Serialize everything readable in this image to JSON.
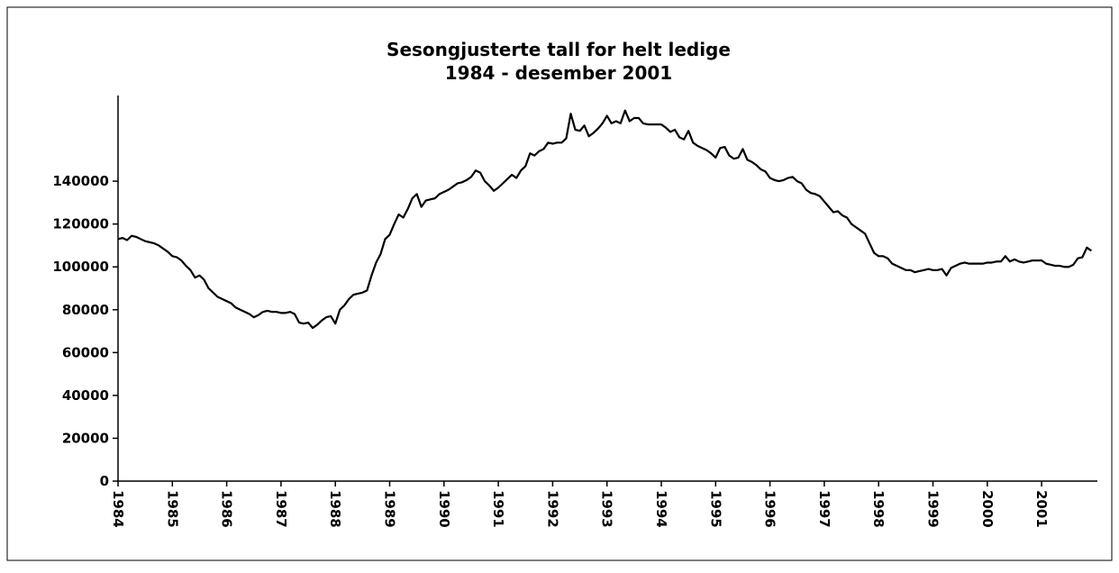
{
  "chart_data": {
    "type": "line",
    "title": "Sesongjusterte tall for helt ledige",
    "subtitle": "1984 - desember 2001",
    "categories": [
      "1984",
      null,
      null,
      null,
      null,
      null,
      null,
      null,
      null,
      null,
      null,
      null,
      "1985",
      null,
      null,
      null,
      null,
      null,
      null,
      null,
      null,
      null,
      null,
      null,
      "1986",
      null,
      null,
      null,
      null,
      null,
      null,
      null,
      null,
      null,
      null,
      null,
      "1987",
      null,
      null,
      null,
      null,
      null,
      null,
      null,
      null,
      null,
      null,
      null,
      "1988",
      null,
      null,
      null,
      null,
      null,
      null,
      null,
      null,
      null,
      null,
      null,
      "1989",
      null,
      null,
      null,
      null,
      null,
      null,
      null,
      null,
      null,
      null,
      null,
      "1990",
      null,
      null,
      null,
      null,
      null,
      null,
      null,
      null,
      null,
      null,
      null,
      "1991",
      null,
      null,
      null,
      null,
      null,
      null,
      null,
      null,
      null,
      null,
      null,
      "1992",
      null,
      null,
      null,
      null,
      null,
      null,
      null,
      null,
      null,
      null,
      null,
      "1993",
      null,
      null,
      null,
      null,
      null,
      null,
      null,
      null,
      null,
      null,
      null,
      "1994",
      null,
      null,
      null,
      null,
      null,
      null,
      null,
      null,
      null,
      null,
      null,
      "1995",
      null,
      null,
      null,
      null,
      null,
      null,
      null,
      null,
      null,
      null,
      null,
      "1996",
      null,
      null,
      null,
      null,
      null,
      null,
      null,
      null,
      null,
      null,
      null,
      "1997",
      null,
      null,
      null,
      null,
      null,
      null,
      null,
      null,
      null,
      null,
      null,
      "1998",
      null,
      null,
      null,
      null,
      null,
      null,
      null,
      null,
      null,
      null,
      null,
      "1999",
      null,
      null,
      null,
      null,
      null,
      null,
      null,
      null,
      null,
      null,
      null,
      "2000",
      null,
      null,
      null,
      null,
      null,
      null,
      null,
      null,
      null,
      null,
      null,
      "2001",
      null,
      null,
      null,
      null,
      null,
      null,
      null,
      null,
      null,
      null,
      null
    ],
    "values": [
      113000,
      113500,
      112500,
      114500,
      114000,
      113000,
      112000,
      111500,
      111000,
      110000,
      108500,
      107000,
      105000,
      104500,
      103000,
      100500,
      98500,
      95000,
      96000,
      94000,
      90000,
      88000,
      86000,
      85000,
      84000,
      83000,
      81000,
      80000,
      79000,
      78000,
      76500,
      77500,
      79000,
      79500,
      79000,
      79000,
      78500,
      78500,
      79000,
      78000,
      74000,
      73500,
      74000,
      71500,
      73000,
      75000,
      76500,
      77000,
      73500,
      80000,
      82000,
      85000,
      87000,
      87500,
      88000,
      89000,
      96000,
      102000,
      106000,
      113000,
      115000,
      120000,
      124500,
      123000,
      127000,
      132000,
      134000,
      128000,
      131000,
      131500,
      132000,
      134000,
      135000,
      136000,
      137500,
      139000,
      139500,
      140500,
      142000,
      145000,
      144000,
      140000,
      138000,
      135500,
      137000,
      139000,
      141000,
      143000,
      141500,
      145000,
      147000,
      153000,
      152000,
      154000,
      155000,
      158000,
      157500,
      158000,
      158000,
      160000,
      171500,
      164000,
      163500,
      166000,
      161000,
      162500,
      164500,
      167000,
      170500,
      167000,
      168000,
      167000,
      173000,
      168000,
      169500,
      169500,
      167000,
      166500,
      166500,
      166500,
      166500,
      165000,
      163000,
      164000,
      160500,
      159500,
      163500,
      158000,
      156500,
      155500,
      154500,
      153000,
      151000,
      155500,
      156000,
      152000,
      150500,
      151000,
      155000,
      150000,
      149000,
      147500,
      145500,
      144500,
      141500,
      140500,
      140000,
      140500,
      141500,
      142000,
      140000,
      139000,
      136000,
      134500,
      134000,
      133000,
      130500,
      128000,
      125500,
      126000,
      124000,
      123000,
      120000,
      118500,
      117000,
      115500,
      111000,
      106500,
      105000,
      105000,
      104000,
      101500,
      100500,
      99500,
      98500,
      98500,
      97500,
      98000,
      98500,
      99000,
      98500,
      98500,
      99000,
      96000,
      99500,
      100500,
      101500,
      102000,
      101500,
      101500,
      101500,
      101500,
      102000,
      102000,
      102500,
      102500,
      105000,
      102500,
      103500,
      102500,
      102000,
      102500,
      103000,
      103000,
      103000,
      101500,
      101000,
      100500,
      100500,
      100000,
      100000,
      101000,
      104000,
      104500,
      109000,
      107500
    ],
    "color": "#000000",
    "ylim": [
      0,
      180000
    ],
    "yticks": [
      0,
      20000,
      40000,
      60000,
      80000,
      100000,
      120000,
      140000
    ],
    "grid": false
  }
}
